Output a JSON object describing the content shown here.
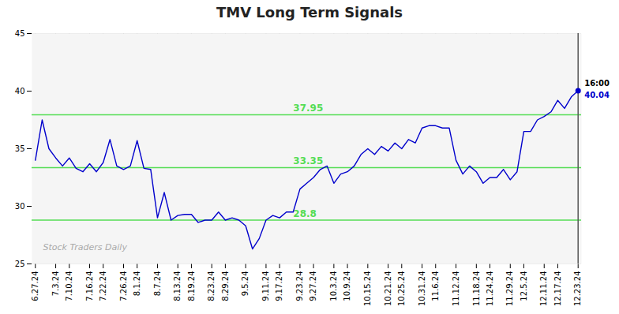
{
  "chart_data": {
    "type": "line",
    "title": "TMV Long Term Signals",
    "categories": [
      "6.27.24",
      null,
      null,
      "7.3.24",
      null,
      "7.10.24",
      null,
      null,
      "7.16.24",
      null,
      "7.22.24",
      null,
      null,
      "7.26.24",
      null,
      "8.1.24",
      null,
      null,
      "8.7.24",
      null,
      null,
      "8.13.24",
      null,
      "8.19.24",
      null,
      null,
      "8.23.24",
      null,
      "8.29.24",
      null,
      null,
      "9.5.24",
      null,
      null,
      "9.11.24",
      null,
      "9.17.24",
      null,
      null,
      "9.23.24",
      null,
      "9.27.24",
      null,
      null,
      "10.3.24",
      null,
      "10.9.24",
      null,
      null,
      "10.15.24",
      null,
      null,
      "10.21.24",
      null,
      "10.25.24",
      null,
      null,
      "10.31.24",
      null,
      "11.6.24",
      null,
      null,
      "11.12.24",
      null,
      null,
      "11.18.24",
      null,
      "11.24.24",
      null,
      null,
      "11.29.24",
      null,
      "12.5.24",
      null,
      null,
      "12.11.24",
      null,
      "12.17.24",
      null,
      null,
      "12.23.24"
    ],
    "values": [
      34.0,
      37.5,
      35.0,
      34.2,
      33.5,
      34.2,
      33.3,
      33.0,
      33.7,
      33.0,
      33.8,
      35.8,
      33.5,
      33.2,
      33.5,
      35.7,
      33.3,
      33.2,
      29.0,
      31.2,
      28.8,
      29.2,
      29.3,
      29.3,
      28.6,
      28.8,
      28.8,
      29.5,
      28.8,
      29.0,
      28.8,
      28.3,
      26.3,
      27.2,
      28.8,
      29.2,
      29.0,
      29.5,
      29.5,
      31.5,
      32.0,
      32.5,
      33.2,
      33.5,
      32.0,
      32.8,
      33.0,
      33.5,
      34.5,
      35.0,
      34.5,
      35.2,
      34.8,
      35.5,
      35.0,
      35.8,
      35.5,
      36.8,
      37.0,
      37.0,
      36.8,
      36.8,
      34.0,
      32.8,
      33.5,
      33.0,
      32.0,
      32.5,
      32.5,
      33.2,
      32.3,
      33.0,
      36.5,
      36.5,
      37.5,
      37.8,
      38.2,
      39.2,
      38.5,
      39.5,
      40.04
    ],
    "color": "#0000cc",
    "hlines": [
      {
        "value": 37.95,
        "label": "37.95",
        "color": "#55dd55"
      },
      {
        "value": 33.35,
        "label": "33.35",
        "color": "#55dd55"
      },
      {
        "value": 28.8,
        "label": "28.8",
        "color": "#55dd55"
      }
    ],
    "last_point": {
      "value": 40.04,
      "label": "40.04",
      "time_label": "16:00"
    },
    "watermark": "Stock Traders Daily",
    "ylim": [
      25,
      45
    ],
    "yticks": [
      25,
      30,
      35,
      40,
      45
    ],
    "grid": true
  }
}
